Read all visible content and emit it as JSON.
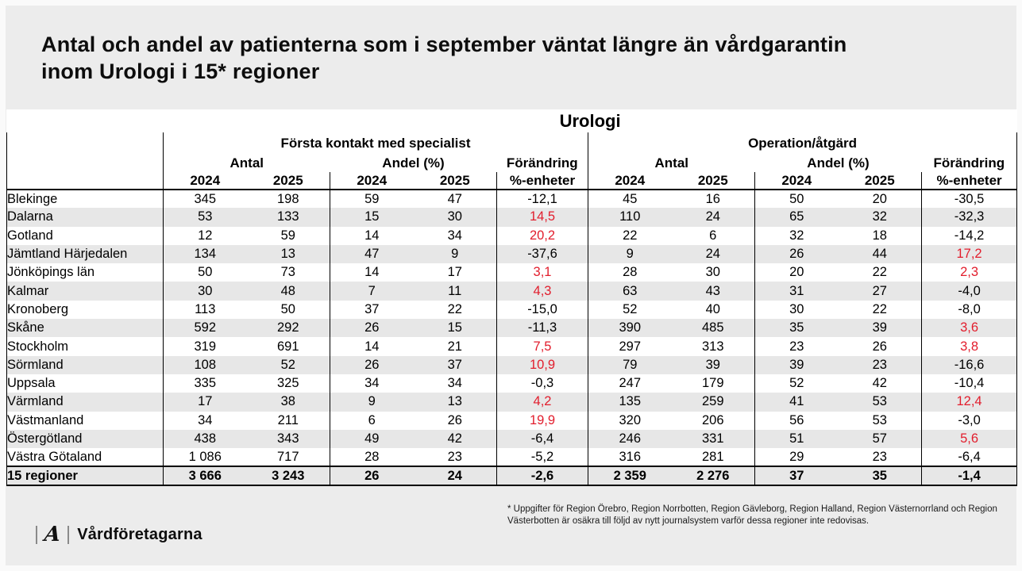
{
  "slide": {
    "title_line1": "Antal och andel av patienterna som i september väntat längre än vårdgarantin",
    "title_line2": "inom Urologi i 15* regioner"
  },
  "table": {
    "title": "Urologi",
    "section_first": "Första kontakt med specialist",
    "section_operation": "Operation/åtgärd",
    "group_labels": [
      "Antal",
      "Andel (%)",
      "Förändring"
    ],
    "years": [
      "2024",
      "2025"
    ],
    "forandring_unit": "%-enheter",
    "rows": [
      {
        "region": "Blekinge",
        "values": [
          "345",
          "198",
          "59",
          "47",
          "-12,1",
          "45",
          "16",
          "50",
          "20",
          "-30,5"
        ]
      },
      {
        "region": "Dalarna",
        "values": [
          "53",
          "133",
          "15",
          "30",
          "14,5",
          "110",
          "24",
          "65",
          "32",
          "-32,3"
        ]
      },
      {
        "region": "Gotland",
        "values": [
          "12",
          "59",
          "14",
          "34",
          "20,2",
          "22",
          "6",
          "32",
          "18",
          "-14,2"
        ]
      },
      {
        "region": "Jämtland Härjedalen",
        "values": [
          "134",
          "13",
          "47",
          "9",
          "-37,6",
          "9",
          "24",
          "26",
          "44",
          "17,2"
        ]
      },
      {
        "region": "Jönköpings län",
        "values": [
          "50",
          "73",
          "14",
          "17",
          "3,1",
          "28",
          "30",
          "20",
          "22",
          "2,3"
        ]
      },
      {
        "region": "Kalmar",
        "values": [
          "30",
          "48",
          "7",
          "11",
          "4,3",
          "63",
          "43",
          "31",
          "27",
          "-4,0"
        ]
      },
      {
        "region": "Kronoberg",
        "values": [
          "113",
          "50",
          "37",
          "22",
          "-15,0",
          "52",
          "40",
          "30",
          "22",
          "-8,0"
        ]
      },
      {
        "region": "Skåne",
        "values": [
          "592",
          "292",
          "26",
          "15",
          "-11,3",
          "390",
          "485",
          "35",
          "39",
          "3,6"
        ]
      },
      {
        "region": "Stockholm",
        "values": [
          "319",
          "691",
          "14",
          "21",
          "7,5",
          "297",
          "313",
          "23",
          "26",
          "3,8"
        ]
      },
      {
        "region": "Sörmland",
        "values": [
          "108",
          "52",
          "26",
          "37",
          "10,9",
          "79",
          "39",
          "39",
          "23",
          "-16,6"
        ]
      },
      {
        "region": "Uppsala",
        "values": [
          "335",
          "325",
          "34",
          "34",
          "-0,3",
          "247",
          "179",
          "52",
          "42",
          "-10,4"
        ]
      },
      {
        "region": "Värmland",
        "values": [
          "17",
          "38",
          "9",
          "13",
          "4,2",
          "135",
          "259",
          "41",
          "53",
          "12,4"
        ]
      },
      {
        "region": "Västmanland",
        "values": [
          "34",
          "211",
          "6",
          "26",
          "19,9",
          "320",
          "206",
          "56",
          "53",
          "-3,0"
        ]
      },
      {
        "region": "Östergötland",
        "values": [
          "438",
          "343",
          "49",
          "42",
          "-6,4",
          "246",
          "331",
          "51",
          "57",
          "5,6"
        ]
      },
      {
        "region": "Västra Götaland",
        "values": [
          "1 086",
          "717",
          "28",
          "23",
          "-5,2",
          "316",
          "281",
          "29",
          "23",
          "-6,4"
        ]
      }
    ],
    "total": {
      "region": "15 regioner",
      "values": [
        "3 666",
        "3 243",
        "26",
        "24",
        "-2,6",
        "2 359",
        "2 276",
        "37",
        "35",
        "-1,4"
      ]
    }
  },
  "footer": {
    "footnote": "* Uppgifter för Region Örebro, Region Norrbotten, Region Gävleborg, Region Halland, Region Västernorrland och Region Västerbotten är osäkra till följd av nytt journalsystem varför dessa regioner inte redovisas.",
    "logo_mark": "A",
    "logo_text": "Vårdföretagarna"
  },
  "colors": {
    "positive_change_red": "#e21d2c",
    "stripe_gray": "#e7e7e7",
    "slide_background": "#ececec"
  }
}
